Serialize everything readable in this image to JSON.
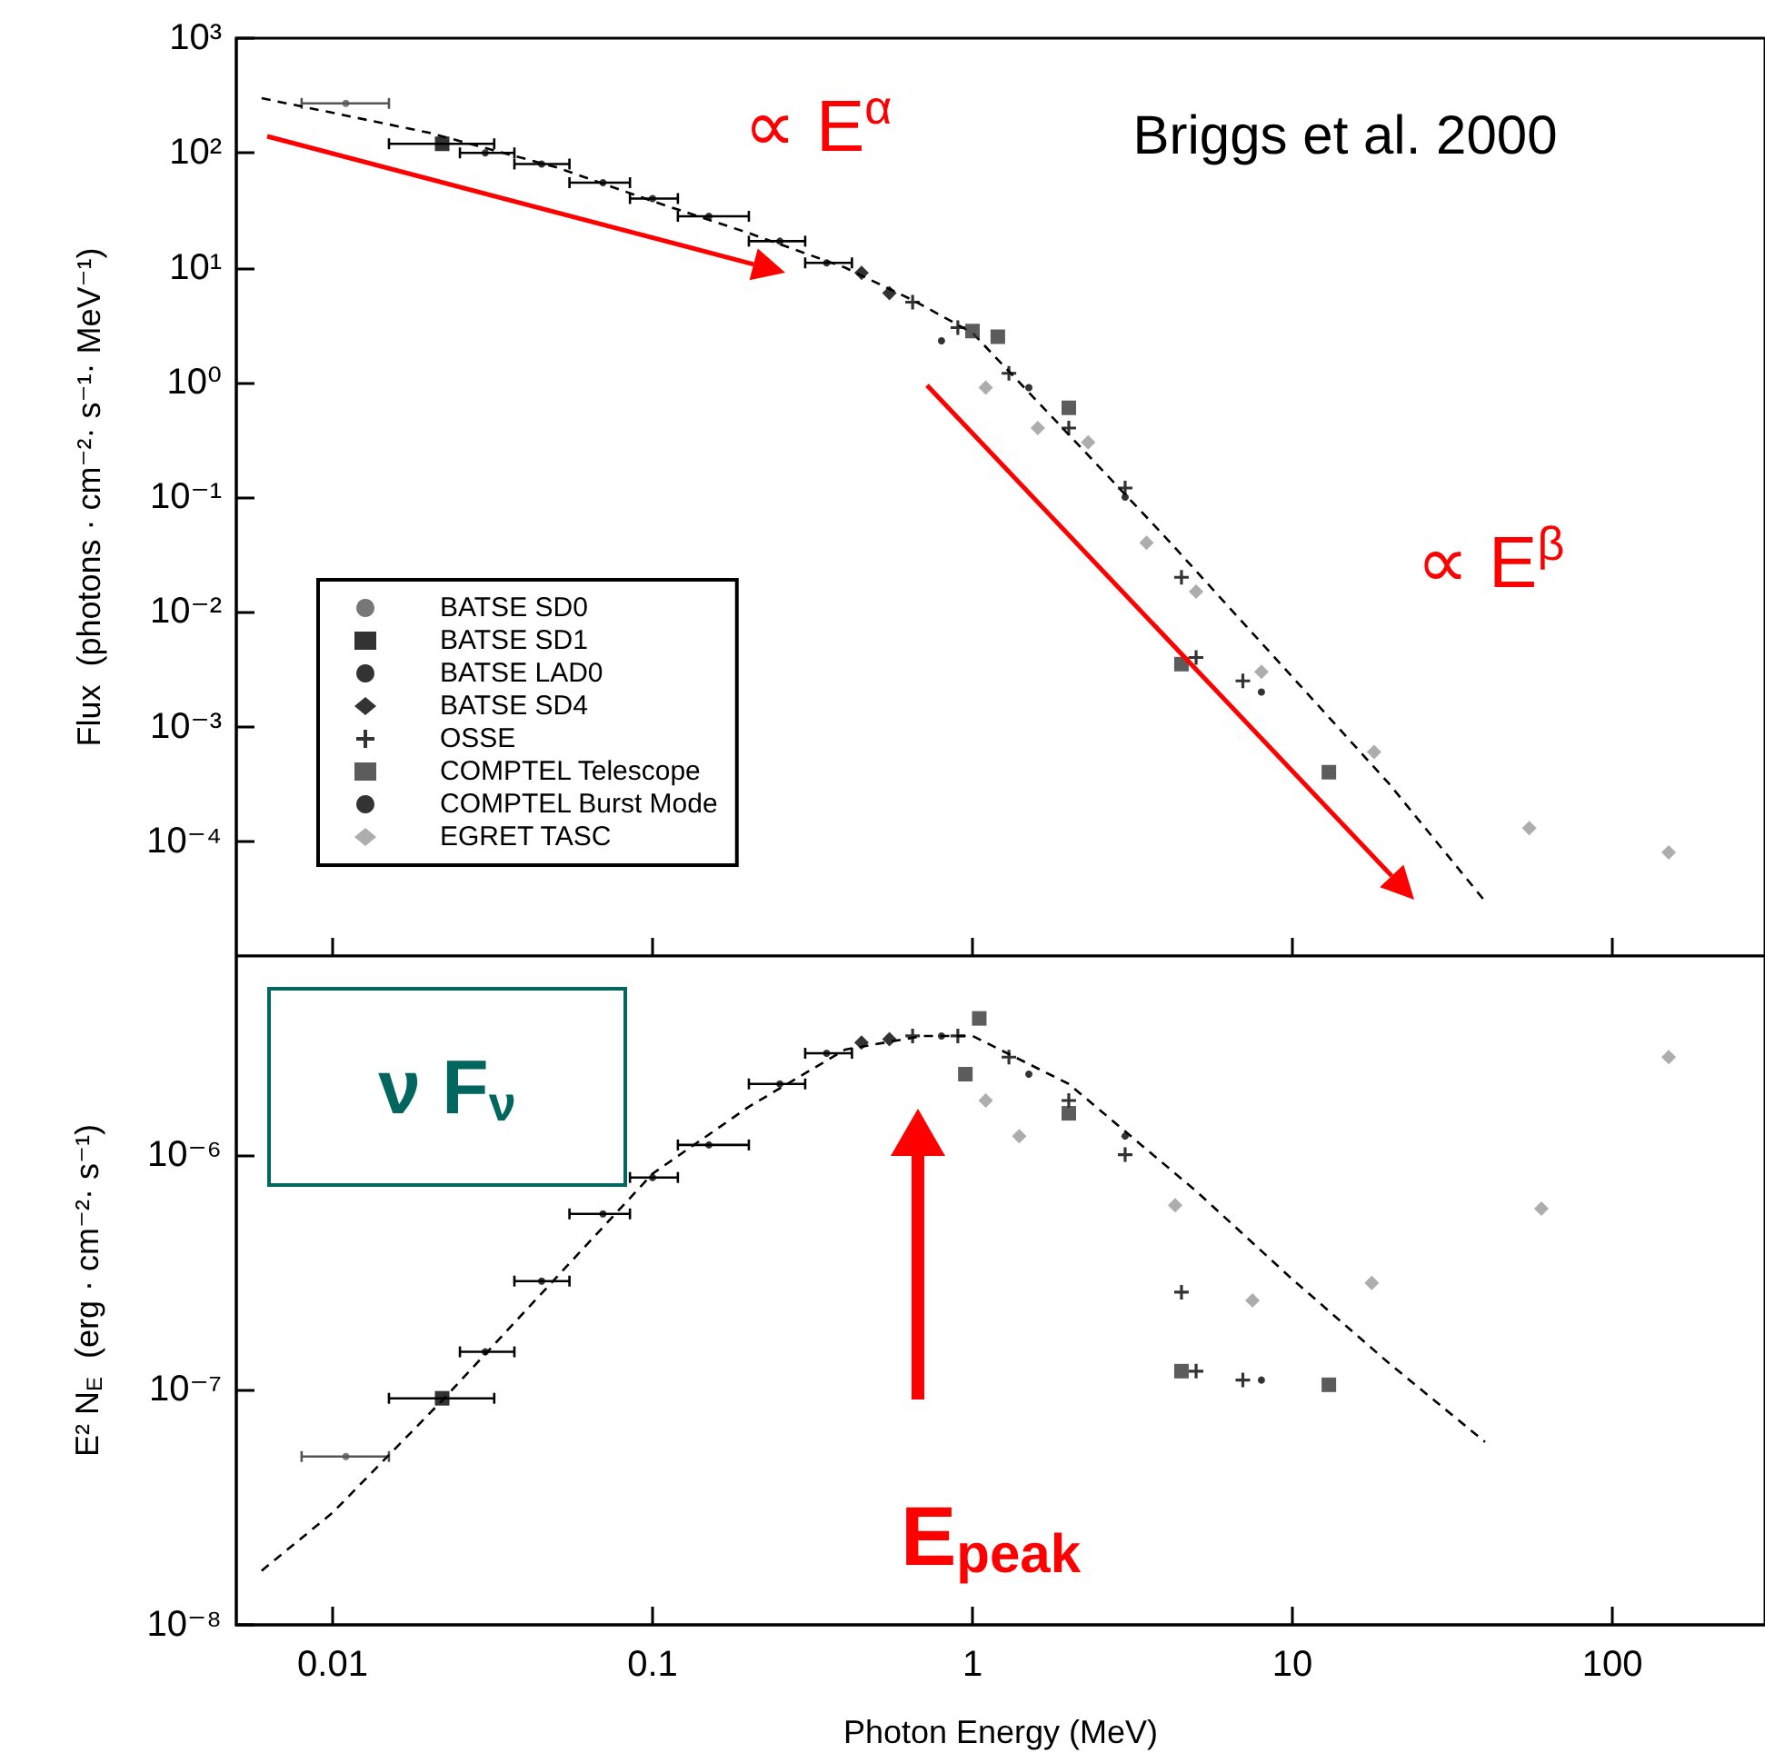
{
  "chart_data": [
    {
      "type": "scatter",
      "ylabel": "Flux  (photons · cm⁻²· s⁻¹· MeV⁻¹)",
      "log": "xy",
      "grid": false,
      "legend": "bottom left",
      "tick_labels": "y",
      "xlim": [
        0.005,
        300
      ],
      "xticks": [
        0.01,
        0.1,
        1,
        10,
        100
      ],
      "ylim": [
        1e-05,
        1000
      ],
      "yticks": [
        {
          "value": 1000,
          "label": "10³"
        },
        {
          "value": 100,
          "label": "10²"
        },
        {
          "value": 10,
          "label": "10¹"
        },
        {
          "value": 1,
          "label": "10⁰"
        },
        {
          "value": 0.1,
          "label": "10⁻¹"
        },
        {
          "value": 0.01,
          "label": "10⁻²"
        },
        {
          "value": 0.001,
          "label": "10⁻³"
        },
        {
          "value": 0.0001,
          "label": "10⁻⁴"
        }
      ],
      "annotations": [
        "∝ E$^{α}$",
        "∝ E$^{β}$",
        "Briggs et al. 2000"
      ],
      "series": [
        {
          "type": "line",
          "line_style": "dashed",
          "marker": "none",
          "color": "#000000",
          "x": [
            0.006,
            0.02,
            0.05,
            0.1,
            0.2,
            0.4,
            0.66,
            1,
            2,
            4,
            10,
            20,
            40
          ],
          "values": [
            300,
            150,
            75,
            38,
            20,
            10,
            5.1,
            2.7,
            0.35,
            0.045,
            0.0027,
            0.00032,
            3e-05
          ]
        },
        {
          "name": "BATSE SD0",
          "marker": "circle",
          "color": "#555555",
          "x": [
            0.011
          ],
          "values": [
            270
          ],
          "xerrors": [
            [
              0.008,
              0.015
            ]
          ]
        },
        {
          "name": "BATSE SD1",
          "marker": "square",
          "color": "#000000",
          "x": [
            0.022
          ],
          "values": [
            120
          ],
          "xerrors": [
            [
              0.015,
              0.032
            ]
          ]
        },
        {
          "name": "BATSE LAD0",
          "marker": "circle",
          "color": "#000000",
          "x": [
            0.03,
            0.045,
            0.07,
            0.1,
            0.15,
            0.25,
            0.35
          ],
          "values": [
            100,
            80,
            55,
            40,
            28,
            17,
            11
          ],
          "xerrors": [
            [
              0.025,
              0.037
            ],
            [
              0.037,
              0.055
            ],
            [
              0.055,
              0.085
            ],
            [
              0.085,
              0.12
            ],
            [
              0.12,
              0.2
            ],
            [
              0.2,
              0.3
            ],
            [
              0.3,
              0.42
            ]
          ]
        },
        {
          "name": "BATSE SD4",
          "marker": "diamond",
          "color": "#000000",
          "x": [
            0.45,
            0.55
          ],
          "values": [
            9,
            6
          ]
        },
        {
          "name": "OSSE",
          "marker": "cross",
          "color": "#000000",
          "x": [
            0.65,
            0.9,
            1.3,
            2,
            3,
            4.5,
            5,
            7
          ],
          "values": [
            5,
            3,
            1.2,
            0.4,
            0.12,
            0.02,
            0.004,
            0.0025
          ]
        },
        {
          "name": "COMPTEL Telescope",
          "marker": "square",
          "color": "#333333",
          "x": [
            1,
            1.2,
            2,
            4.5,
            13
          ],
          "values": [
            2.8,
            2.5,
            0.6,
            0.0035,
            0.0004
          ]
        },
        {
          "name": "COMPTEL Burst Mode",
          "marker": "circle",
          "color": "#000000",
          "x": [
            0.8,
            1.5,
            3,
            8
          ],
          "values": [
            2.3,
            0.9,
            0.1,
            0.002
          ]
        },
        {
          "name": "EGRET TASC",
          "marker": "diamond",
          "color": "#999999",
          "x": [
            1.1,
            1.6,
            2.3,
            3.5,
            5,
            8,
            18,
            55,
            150
          ],
          "values": [
            0.9,
            0.4,
            0.3,
            0.04,
            0.015,
            0.003,
            0.0006,
            0.00013,
            8e-05
          ]
        }
      ]
    },
    {
      "type": "scatter",
      "xlabel": "Photon Energy (MeV)",
      "ylabel": "E² N$_{E}$  (erg · cm⁻²· s⁻¹)",
      "log": "xy",
      "grid": false,
      "xlim": [
        0.005,
        300
      ],
      "xticks": [
        0.01,
        0.1,
        1,
        10,
        100
      ],
      "ylim": [
        1e-08,
        7e-06
      ],
      "yticks": [
        {
          "value": 1e-06,
          "label": "10⁻⁶"
        },
        {
          "value": 1e-07,
          "label": "10⁻⁷"
        },
        {
          "value": 1e-08,
          "label": "10⁻⁸"
        }
      ],
      "annotations": [
        "ν F$_{ν}$",
        "E$_{peak}$"
      ],
      "series": [
        {
          "type": "line",
          "line_style": "dashed",
          "marker": "none",
          "color": "#000000",
          "x": [
            0.006,
            0.01,
            0.022,
            0.05,
            0.1,
            0.2,
            0.4,
            0.7,
            1,
            2,
            5,
            10,
            20,
            40
          ],
          "values": [
            1.7e-08,
            3e-08,
            9e-08,
            3e-07,
            8.3e-07,
            1.6e-06,
            2.8e-06,
            3.2e-06,
            3.2e-06,
            2e-06,
            7e-07,
            2.95e-07,
            1.3e-07,
            6e-08
          ]
        },
        {
          "marker": "circle",
          "color": "#555555",
          "x": [
            0.011
          ],
          "values": [
            5.2e-08
          ],
          "xerrors": [
            [
              0.008,
              0.015
            ]
          ]
        },
        {
          "marker": "square",
          "color": "#000000",
          "x": [
            0.022
          ],
          "values": [
            9.2e-08
          ],
          "xerrors": [
            [
              0.015,
              0.032
            ]
          ]
        },
        {
          "marker": "circle",
          "color": "#000000",
          "x": [
            0.03,
            0.045,
            0.07,
            0.1,
            0.15,
            0.25,
            0.35
          ],
          "values": [
            1.45e-07,
            2.9e-07,
            5.6e-07,
            8e-07,
            1.1e-06,
            2e-06,
            2.7e-06
          ],
          "xerrors": [
            [
              0.025,
              0.037
            ],
            [
              0.037,
              0.055
            ],
            [
              0.055,
              0.085
            ],
            [
              0.085,
              0.12
            ],
            [
              0.12,
              0.2
            ],
            [
              0.2,
              0.3
            ],
            [
              0.3,
              0.42
            ]
          ]
        },
        {
          "marker": "diamond",
          "color": "#000000",
          "x": [
            0.45,
            0.55
          ],
          "values": [
            3e-06,
            3.1e-06
          ]
        },
        {
          "marker": "cross",
          "color": "#000000",
          "x": [
            0.65,
            0.9,
            1.3,
            2,
            3,
            4.5,
            5,
            7
          ],
          "values": [
            3.2e-06,
            3.2e-06,
            2.6e-06,
            1.7e-06,
            1e-06,
            2.6e-07,
            1.2e-07,
            1.1e-07
          ]
        },
        {
          "marker": "square",
          "color": "#333333",
          "x": [
            0.95,
            1.05,
            2,
            4.5,
            13
          ],
          "values": [
            2.2e-06,
            3.8e-06,
            1.5e-06,
            1.2e-07,
            1.05e-07
          ]
        },
        {
          "marker": "circle",
          "color": "#000000",
          "x": [
            0.8,
            1.5,
            3,
            8
          ],
          "values": [
            3.2e-06,
            2.2e-06,
            1.2e-06,
            1.1e-07
          ]
        },
        {
          "marker": "diamond",
          "color": "#999999",
          "x": [
            1.1,
            1.4,
            4.3,
            7.5,
            17.7,
            60,
            150
          ],
          "values": [
            1.7e-06,
            1.2e-06,
            6.1e-07,
            2.4e-07,
            2.85e-07,
            5.9e-07,
            2.6e-06
          ]
        }
      ]
    }
  ]
}
